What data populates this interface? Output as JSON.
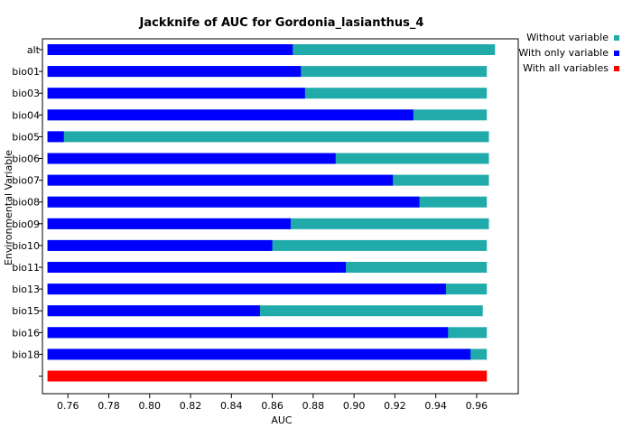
{
  "chart_data": {
    "type": "bar",
    "orientation": "horizontal",
    "title": "Jackknife of AUC for Gordonia_lasianthus_4",
    "xlabel": "AUC",
    "ylabel": "Environmental Variable",
    "xlim": [
      0.75,
      0.98
    ],
    "xticks": [
      "0.76",
      "0.78",
      "0.80",
      "0.82",
      "0.84",
      "0.86",
      "0.88",
      "0.90",
      "0.92",
      "0.94",
      "0.96"
    ],
    "categories": [
      "alt",
      "bio01",
      "bio03",
      "bio04",
      "bio05",
      "bio06",
      "bio07",
      "bio08",
      "bio09",
      "bio10",
      "bio11",
      "bio13",
      "bio15",
      "bio16",
      "bio18"
    ],
    "series": [
      {
        "name": "Without variable",
        "color": "#20aaaa",
        "values": [
          0.969,
          0.965,
          0.965,
          0.965,
          0.966,
          0.966,
          0.966,
          0.965,
          0.966,
          0.965,
          0.965,
          0.965,
          0.963,
          0.965,
          0.965
        ]
      },
      {
        "name": "With only variable",
        "color": "#0000ff",
        "values": [
          0.87,
          0.874,
          0.876,
          0.929,
          0.758,
          0.891,
          0.919,
          0.932,
          0.869,
          0.86,
          0.896,
          0.945,
          0.854,
          0.946,
          0.957
        ]
      },
      {
        "name": "With all variables",
        "color": "#ff0000",
        "value": 0.965
      }
    ],
    "legend": "top-right",
    "grid": false
  }
}
